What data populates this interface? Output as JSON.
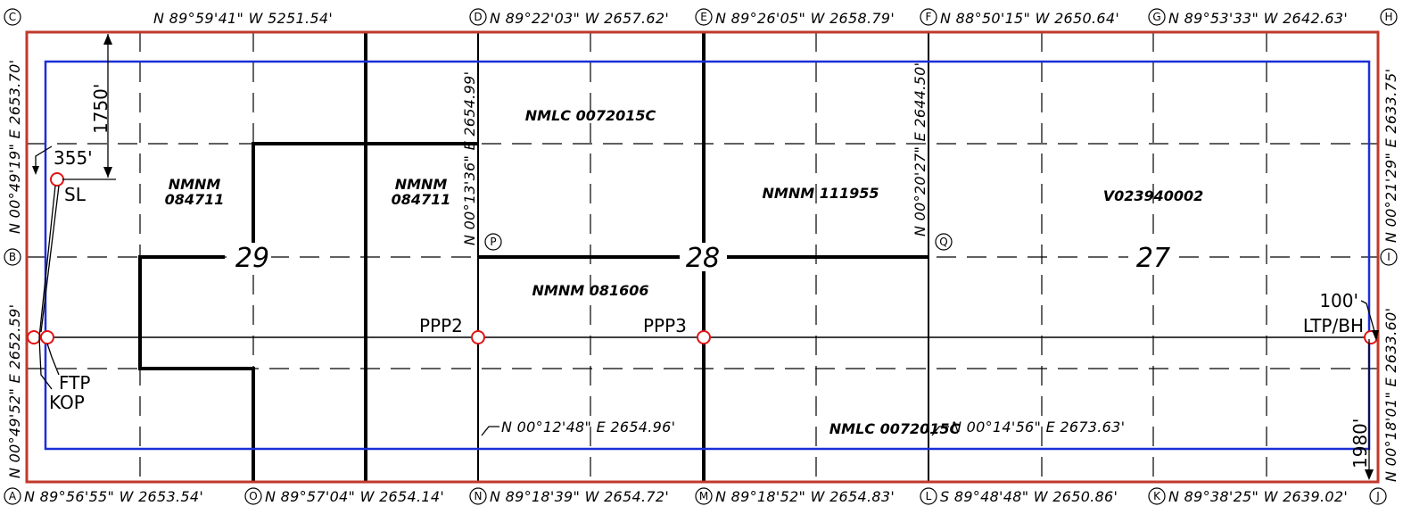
{
  "colors": {
    "boundary": "#c0392b",
    "setback": "#1a2fd6",
    "wellpoint": "#e01515",
    "ink": "#000000"
  },
  "corners": {
    "A": "A",
    "B": "B",
    "C": "C",
    "D": "D",
    "E": "E",
    "F": "F",
    "G": "G",
    "H": "H",
    "I": "I",
    "J": "J",
    "K": "K",
    "L": "L",
    "M": "M",
    "N": "N",
    "O": "O",
    "P": "P",
    "Q": "Q"
  },
  "top_bearings": {
    "c_d": "N 89°59'41\" W 5251.54'",
    "d_e": "N 89°22'03\" W 2657.62'",
    "e_f": "N 89°26'05\" W 2658.79'",
    "f_g": "N 88°50'15\" W 2650.64'",
    "g_h": "N 89°53'33\" W 2642.63'"
  },
  "bottom_bearings": {
    "a_o": "N 89°56'55\" W 2653.54'",
    "o_n": "N 89°57'04\" W 2654.14'",
    "n_m": "N 89°18'39\" W 2654.72'",
    "m_l": "N 89°18'52\" W 2654.83'",
    "l_k": "S 89°48'48\" W 2650.86'",
    "k_j": "N 89°38'25\" W 2639.02'"
  },
  "left_bearings": {
    "c_b": "N 00°49'19\" E 2653.70'",
    "b_a": "N 00°49'52\" E 2652.59'"
  },
  "right_bearings": {
    "h_i": "N 00°21'29\" E 2633.75'",
    "i_j": "N 00°18'01\" E 2633.60'"
  },
  "interior_bearings": {
    "d_p": "N 00°13'36\" E 2654.99'",
    "f_q": "N 00°20'27\" E 2644.50'",
    "p_n": "N 00°12'48\" E 2654.96'",
    "q_l": "N 00°14'56\" E 2673.63'"
  },
  "sections": {
    "s29": "29",
    "s28": "28",
    "s27": "27"
  },
  "leases": {
    "nmnm084711_a_1": "NMNM",
    "nmnm084711_a_2": "084711",
    "nmnm084711_b_1": "NMNM",
    "nmnm084711_b_2": "084711",
    "nmlc_top": "NMLC 0072015C",
    "nmnm111955": "NMNM 111955",
    "v023940002": "V023940002",
    "nmnm081606": "NMNM 081606",
    "nmlc_bottom": "NMLC 0072015C"
  },
  "wellpoints": {
    "sl": "SL",
    "ftp": "FTP",
    "kop": "KOP",
    "ppp2": "PPP2",
    "ppp3": "PPP3",
    "ltp_bh": "LTP/BH"
  },
  "dimensions": {
    "d1750": "1750'",
    "d355": "355'",
    "d100": "100'",
    "d1980": "1980'"
  }
}
